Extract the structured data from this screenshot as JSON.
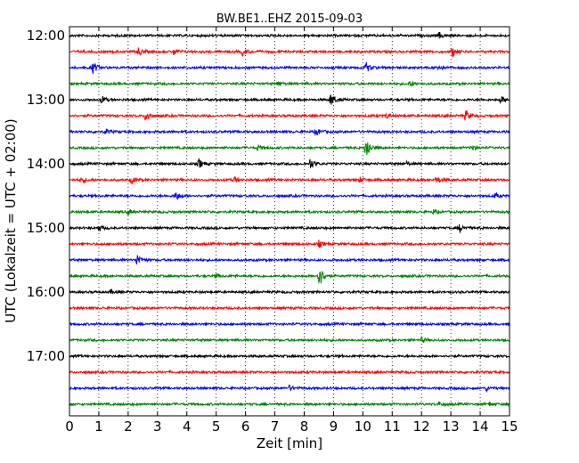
{
  "chart_data": {
    "type": "line",
    "title": "BW.BE1..EHZ 2015-09-03",
    "xlabel": "Zeit  [min]",
    "ylabel": "UTC (Lokalzeit = UTC + 02:00)",
    "xlim": [
      0,
      15
    ],
    "x_ticks": [
      "0",
      "1",
      "2",
      "3",
      "4",
      "5",
      "6",
      "7",
      "8",
      "9",
      "10",
      "11",
      "12",
      "13",
      "14",
      "15"
    ],
    "y_tick_labels": [
      "12:00",
      "13:00",
      "14:00",
      "15:00",
      "16:00",
      "17:00"
    ],
    "grid": "vertical dotted",
    "trace_colors": [
      "#000000",
      "#ff0000",
      "#0000ff",
      "#008000"
    ],
    "series": [
      {
        "start": "12:00",
        "color": "#000000",
        "events": [
          {
            "t": 12.6,
            "a": 0.5
          }
        ]
      },
      {
        "start": "12:15",
        "color": "#ff0000",
        "events": [
          {
            "t": 2.35,
            "a": 0.7
          },
          {
            "t": 3.55,
            "a": 0.6
          },
          {
            "t": 5.9,
            "a": 0.6
          },
          {
            "t": 13.05,
            "a": 0.8
          }
        ]
      },
      {
        "start": "12:30",
        "color": "#0000ff",
        "events": [
          {
            "t": 0.8,
            "a": 1.0
          },
          {
            "t": 10.1,
            "a": 0.8
          },
          {
            "t": 12.5,
            "a": 0.5
          }
        ]
      },
      {
        "start": "12:45",
        "color": "#008000",
        "events": [
          {
            "t": 7.1,
            "a": 0.4
          },
          {
            "t": 11.6,
            "a": 0.4
          }
        ]
      },
      {
        "start": "13:00",
        "color": "#000000",
        "events": [
          {
            "t": 1.1,
            "a": 0.6
          },
          {
            "t": 8.9,
            "a": 1.1
          },
          {
            "t": 14.7,
            "a": 0.6
          }
        ]
      },
      {
        "start": "13:15",
        "color": "#ff0000",
        "events": [
          {
            "t": 2.6,
            "a": 1.0
          },
          {
            "t": 10.8,
            "a": 0.4
          },
          {
            "t": 13.5,
            "a": 0.9
          }
        ]
      },
      {
        "start": "13:30",
        "color": "#0000ff",
        "events": [
          {
            "t": 1.2,
            "a": 0.5
          },
          {
            "t": 8.4,
            "a": 0.6
          }
        ]
      },
      {
        "start": "13:45",
        "color": "#008000",
        "events": [
          {
            "t": 6.4,
            "a": 0.4
          },
          {
            "t": 10.1,
            "a": 2.2
          },
          {
            "t": 13.7,
            "a": 0.5
          }
        ]
      },
      {
        "start": "14:00",
        "color": "#000000",
        "events": [
          {
            "t": 4.4,
            "a": 0.8
          },
          {
            "t": 8.2,
            "a": 0.9
          },
          {
            "t": 11.5,
            "a": 0.3
          }
        ]
      },
      {
        "start": "14:15",
        "color": "#ff0000",
        "events": [
          {
            "t": 0.4,
            "a": 0.5
          },
          {
            "t": 2.1,
            "a": 0.6
          },
          {
            "t": 5.6,
            "a": 0.5
          },
          {
            "t": 9.9,
            "a": 0.4
          },
          {
            "t": 12.5,
            "a": 0.6
          }
        ]
      },
      {
        "start": "14:30",
        "color": "#0000ff",
        "events": [
          {
            "t": 3.6,
            "a": 0.8
          },
          {
            "t": 14.5,
            "a": 0.4
          }
        ]
      },
      {
        "start": "14:45",
        "color": "#008000",
        "events": [
          {
            "t": 2.0,
            "a": 0.5
          },
          {
            "t": 12.4,
            "a": 0.3
          }
        ]
      },
      {
        "start": "15:00",
        "color": "#000000",
        "events": [
          {
            "t": 1.0,
            "a": 0.5
          },
          {
            "t": 13.3,
            "a": 0.6
          }
        ]
      },
      {
        "start": "15:15",
        "color": "#ff0000",
        "events": [
          {
            "t": 8.5,
            "a": 0.5
          }
        ]
      },
      {
        "start": "15:30",
        "color": "#0000ff",
        "events": [
          {
            "t": 2.3,
            "a": 1.1
          }
        ]
      },
      {
        "start": "15:45",
        "color": "#008000",
        "events": [
          {
            "t": 5.0,
            "a": 0.3
          },
          {
            "t": 8.5,
            "a": 2.0
          }
        ]
      },
      {
        "start": "16:00",
        "color": "#000000",
        "events": [
          {
            "t": 1.4,
            "a": 0.3
          }
        ]
      },
      {
        "start": "16:15",
        "color": "#ff0000",
        "events": []
      },
      {
        "start": "16:30",
        "color": "#0000ff",
        "events": []
      },
      {
        "start": "16:45",
        "color": "#008000",
        "events": [
          {
            "t": 12.0,
            "a": 0.4
          }
        ]
      },
      {
        "start": "17:00",
        "color": "#000000",
        "events": []
      },
      {
        "start": "17:15",
        "color": "#ff0000",
        "events": []
      },
      {
        "start": "17:30",
        "color": "#0000ff",
        "events": [
          {
            "t": 7.5,
            "a": 0.4
          },
          {
            "t": 14.2,
            "a": 0.4
          }
        ]
      },
      {
        "start": "17:45",
        "color": "#008000",
        "events": [
          {
            "t": 12.6,
            "a": 0.3
          },
          {
            "t": 14.3,
            "a": 0.3
          }
        ]
      }
    ]
  }
}
